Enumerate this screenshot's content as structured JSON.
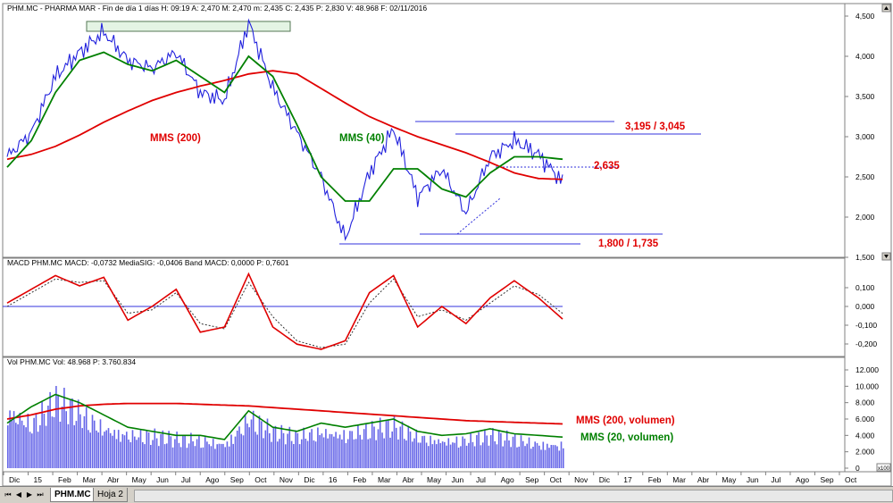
{
  "header": {
    "main": "PHM.MC - PHARMA MAR - Fin de día 1 días H: 09:19 A: 2,470 M: 2,470 m: 2,435 C: 2,435 P: 2,830 V: 48.968 F: 02/11/2016",
    "macd": "MACD PHM.MC MACD: -0,0732 MediaSIG: -0,0406 Band MACD: 0,0000 P: 0,7601",
    "vol": "Vol PHM.MC Vol: 48.968 P: 3.760.834"
  },
  "colors": {
    "price": "#2222dd",
    "mms200": "#e00000",
    "mms40": "#008000",
    "macd": "#e00000",
    "signal": "#333333",
    "level": "#3333dd",
    "volume": "#6666e8",
    "annotation_red": "#e00000",
    "annotation_green": "#008000"
  },
  "annotations": {
    "mms200": "MMS (200)",
    "mms40": "MMS (40)",
    "resistance": "3,195 / 3,045",
    "support": "1,800 / 1,735",
    "last": "2,635",
    "vol200": "MMS (200, volumen)",
    "vol20": "MMS (20, volumen)"
  },
  "chart_data": [
    {
      "type": "line",
      "panel": "price",
      "x": [
        "Dic 2014",
        "Ene 2015",
        "Feb 2015",
        "Mar 2015",
        "Abr 2015",
        "May 2015",
        "Jun 2015",
        "Jul 2015",
        "Ago 2015",
        "Sep 2015",
        "Oct 2015",
        "Nov 2015",
        "Dic 2015",
        "Ene 2016",
        "Feb 2016",
        "Mar 2016",
        "Abr 2016",
        "May 2016",
        "Jun 2016",
        "Jul 2016",
        "Ago 2016",
        "Sep 2016",
        "Oct 2016",
        "Nov 2016"
      ],
      "series": [
        {
          "name": "PHM.MC",
          "values": [
            2.75,
            3.05,
            3.75,
            4.05,
            4.3,
            3.95,
            3.85,
            4.05,
            3.55,
            3.45,
            4.42,
            3.6,
            3.05,
            2.5,
            1.73,
            2.55,
            3.1,
            2.25,
            2.6,
            2.05,
            2.75,
            2.95,
            2.78,
            2.435
          ]
        },
        {
          "name": "MMS (40)",
          "values": [
            2.62,
            2.95,
            3.55,
            3.95,
            4.05,
            3.9,
            3.82,
            3.95,
            3.75,
            3.55,
            4.0,
            3.75,
            3.15,
            2.5,
            2.2,
            2.2,
            2.6,
            2.6,
            2.35,
            2.25,
            2.55,
            2.75,
            2.75,
            2.72
          ]
        },
        {
          "name": "MMS (200)",
          "values": [
            2.72,
            2.78,
            2.88,
            3.02,
            3.18,
            3.32,
            3.45,
            3.55,
            3.63,
            3.7,
            3.78,
            3.82,
            3.78,
            3.6,
            3.42,
            3.25,
            3.12,
            3.0,
            2.9,
            2.8,
            2.68,
            2.55,
            2.48,
            2.47
          ]
        }
      ],
      "levels": [
        3.195,
        3.045,
        2.635,
        1.8,
        1.735
      ],
      "ylim": [
        1.5,
        4.5
      ],
      "yticks": [
        "4,500",
        "4,000",
        "3,500",
        "3,000",
        "2,500",
        "2,000",
        "1,500"
      ]
    },
    {
      "type": "line",
      "panel": "macd",
      "series": [
        {
          "name": "MACD",
          "values": [
            0.02,
            0.1,
            0.18,
            0.12,
            0.17,
            -0.08,
            0.0,
            0.1,
            -0.15,
            -0.12,
            0.19,
            -0.12,
            -0.22,
            -0.25,
            -0.2,
            0.08,
            0.18,
            -0.12,
            0.0,
            -0.1,
            0.05,
            0.15,
            0.05,
            -0.0732
          ]
        },
        {
          "name": "MediaSIG",
          "values": [
            0.0,
            0.08,
            0.16,
            0.14,
            0.15,
            -0.04,
            -0.02,
            0.08,
            -0.1,
            -0.13,
            0.14,
            -0.06,
            -0.2,
            -0.24,
            -0.22,
            0.02,
            0.16,
            -0.06,
            -0.02,
            -0.08,
            0.02,
            0.12,
            0.07,
            -0.0406
          ]
        }
      ],
      "ylim": [
        -0.25,
        0.25
      ],
      "yticks": [
        "0,100",
        "0,000",
        "-0,100",
        "-0,200"
      ]
    },
    {
      "type": "bar",
      "panel": "volume",
      "series": [
        {
          "name": "Vol",
          "values": [
            9.5,
            7.0,
            10.5,
            8.5,
            6.5,
            5.5,
            5.0,
            4.5,
            4.5,
            4.0,
            8.0,
            5.5,
            5.0,
            6.0,
            5.5,
            6.0,
            6.5,
            5.0,
            4.5,
            4.5,
            5.0,
            4.5,
            4.0,
            3.8
          ]
        },
        {
          "name": "MMS (200, volumen)",
          "values": [
            6.0,
            6.5,
            7.2,
            7.6,
            7.8,
            7.9,
            7.9,
            7.9,
            7.8,
            7.7,
            7.6,
            7.4,
            7.2,
            7.0,
            6.8,
            6.6,
            6.4,
            6.2,
            6.0,
            5.8,
            5.7,
            5.6,
            5.5,
            5.4
          ]
        },
        {
          "name": "MMS (20, volumen)",
          "values": [
            5.5,
            7.5,
            9.0,
            8.0,
            6.5,
            5.0,
            4.5,
            4.0,
            4.0,
            3.5,
            7.0,
            5.0,
            4.5,
            5.5,
            5.0,
            5.5,
            6.0,
            4.5,
            4.0,
            4.2,
            4.8,
            4.2,
            4.0,
            3.8
          ]
        }
      ],
      "ylim": [
        0,
        12
      ],
      "yticks": [
        "12.000",
        "10.000",
        "8.000",
        "6.000",
        "4.000",
        "2.000",
        "0"
      ],
      "yunit": "x100"
    }
  ],
  "x_axis": {
    "labels": [
      "Dic",
      "15",
      "Feb",
      "Mar",
      "Abr",
      "May",
      "Jun",
      "Jul",
      "Ago",
      "Sep",
      "Oct",
      "Nov",
      "Dic",
      "16",
      "Feb",
      "Mar",
      "Abr",
      "May",
      "Jun",
      "Jul",
      "Ago",
      "Sep",
      "Oct",
      "Nov",
      "Dic",
      "17",
      "Feb",
      "Mar",
      "Abr",
      "May",
      "Jun",
      "Jul",
      "Ago",
      "Sep",
      "Oct"
    ]
  },
  "tabs": [
    "PHM.MC",
    "Hoja 2"
  ],
  "nav": [
    "⏮",
    "◀",
    "▶",
    "⏭"
  ]
}
